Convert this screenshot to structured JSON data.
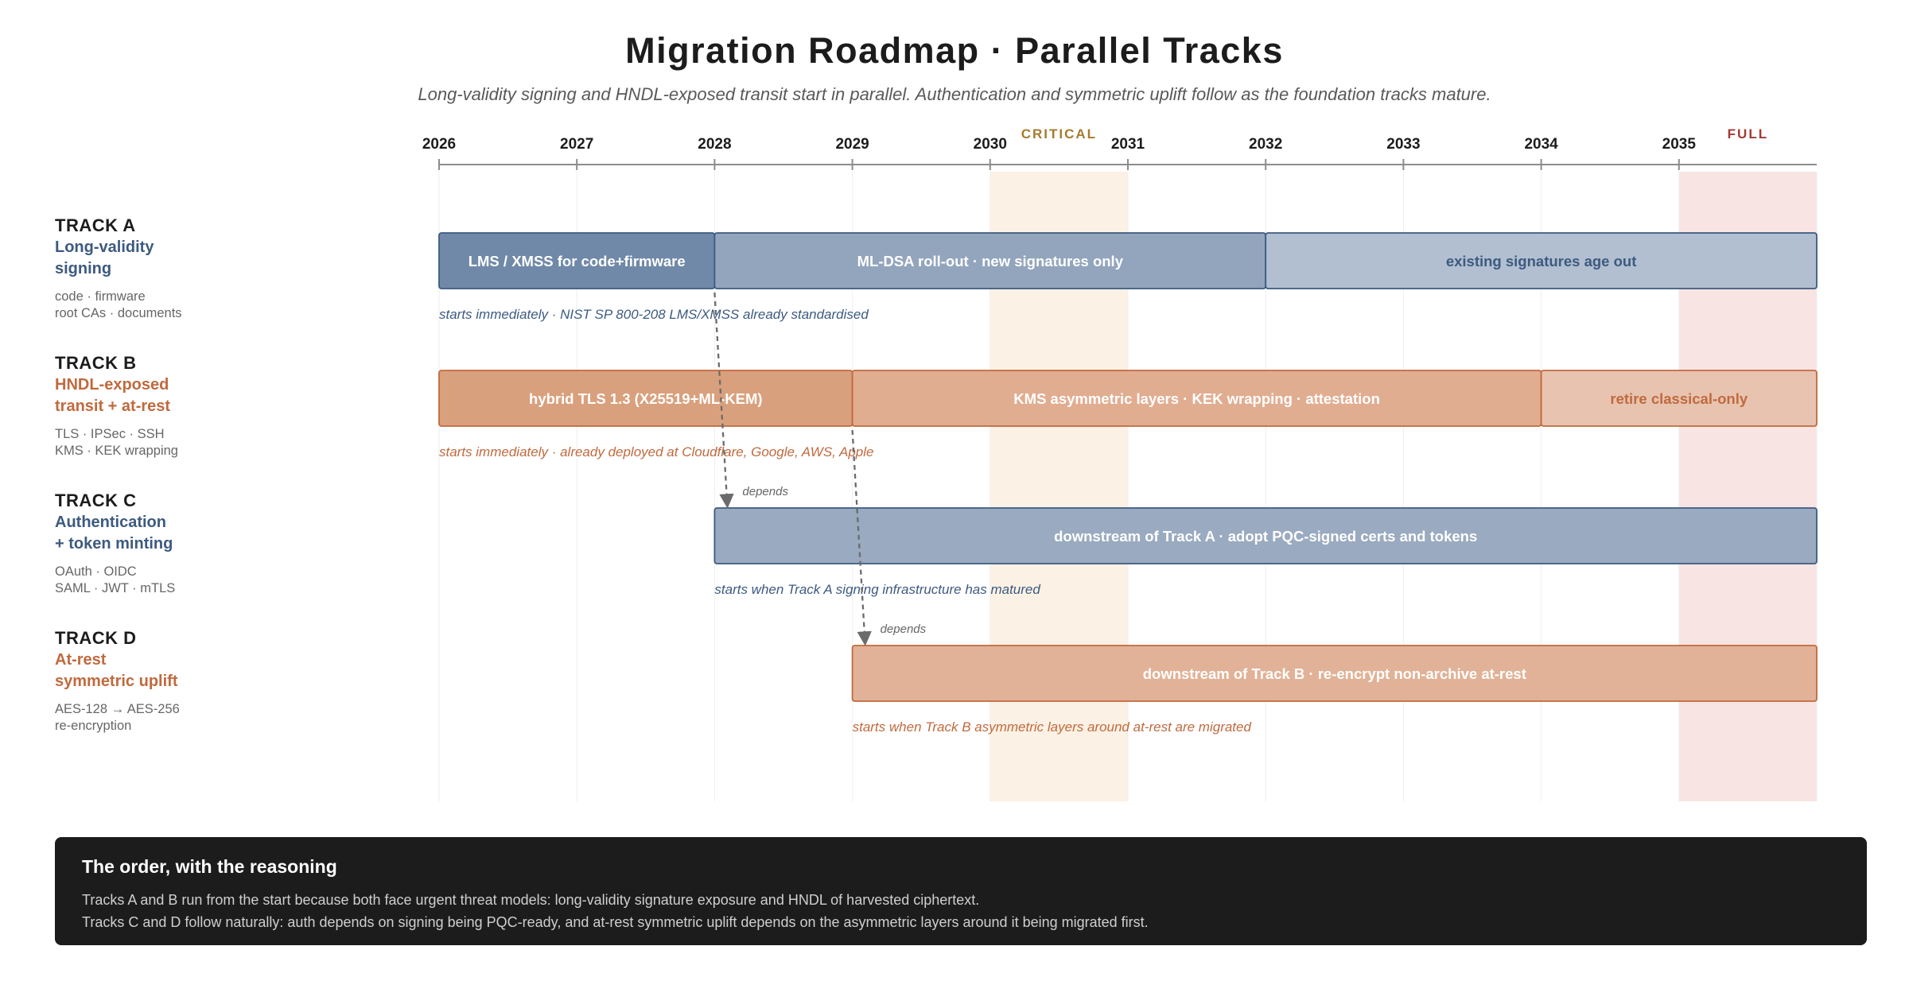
{
  "header": {
    "title": "Migration Roadmap · Parallel Tracks",
    "subtitle": "Long-validity signing and HNDL-exposed transit start in parallel. Authentication and symmetric uplift follow as the foundation tracks mature."
  },
  "timeline": {
    "start_year": 2026,
    "end_year": 2036,
    "years": [
      "2026",
      "2027",
      "2028",
      "2029",
      "2030",
      "2031",
      "2032",
      "2033",
      "2034",
      "2035"
    ],
    "bands": [
      {
        "label": "CRITICAL",
        "from": 2030,
        "to": 2031,
        "fill": "#fbf1e4",
        "text_color": "#a77a2e"
      },
      {
        "label": "FULL",
        "from": 2035,
        "to": 2036,
        "fill": "#f8e4e2",
        "text_color": "#a53b32"
      }
    ]
  },
  "colors": {
    "blue_text": "#3d5a80",
    "orange_text": "#c06a3e",
    "axis": "#8c8c8c",
    "dependency": "#6b6b6b"
  },
  "tracks": [
    {
      "id": "TRACK A",
      "name_lines": [
        "Long-validity",
        "signing"
      ],
      "tags": [
        "code · firmware",
        "root CAs · documents"
      ],
      "color": "#3d5a80",
      "bars": [
        {
          "label": "LMS / XMSS for code+firmware",
          "from": 2026,
          "to": 2028,
          "fill": "#7089a8",
          "stroke": "#3d5a80",
          "text_color": "#ffffff"
        },
        {
          "label": "ML-DSA roll-out · new signatures only",
          "from": 2028,
          "to": 2032,
          "fill": "#93a5bd",
          "stroke": "#3d5a80",
          "text_color": "#ffffff"
        },
        {
          "label": "existing signatures age out",
          "from": 2032,
          "to": 2036,
          "fill": "#b1bfd0",
          "stroke": "#3d5a80",
          "text_color": "#3d5a80"
        }
      ],
      "note": {
        "text": "starts immediately · NIST SP 800-208 LMS/XMSS already standardised",
        "at": 2026
      }
    },
    {
      "id": "TRACK B",
      "name_lines": [
        "HNDL-exposed",
        "transit + at-rest"
      ],
      "tags": [
        "TLS · IPSec · SSH",
        "KMS · KEK wrapping"
      ],
      "color": "#c06a3e",
      "bars": [
        {
          "label": "hybrid TLS 1.3 (X25519+ML-KEM)",
          "from": 2026,
          "to": 2029,
          "fill": "#d9a07d",
          "stroke": "#c06a3e",
          "text_color": "#ffffff"
        },
        {
          "label": "KMS asymmetric layers · KEK wrapping · attestation",
          "from": 2029,
          "to": 2034,
          "fill": "#e1ad91",
          "stroke": "#c06a3e",
          "text_color": "#ffffff"
        },
        {
          "label": "retire classical-only",
          "from": 2034,
          "to": 2036,
          "fill": "#e8c3b0",
          "stroke": "#c06a3e",
          "text_color": "#c06a3e"
        }
      ],
      "note": {
        "text": "starts immediately · already deployed at Cloudflare, Google, AWS, Apple",
        "at": 2026
      }
    },
    {
      "id": "TRACK C",
      "name_lines": [
        "Authentication",
        "+ token minting"
      ],
      "tags": [
        "OAuth · OIDC",
        "SAML · JWT · mTLS"
      ],
      "color": "#3d5a80",
      "bars": [
        {
          "label": "downstream of Track A · adopt PQC-signed certs and tokens",
          "from": 2028,
          "to": 2036,
          "fill": "#9aaac0",
          "stroke": "#3d5a80",
          "text_color": "#ffffff"
        }
      ],
      "note": {
        "text": "starts when Track A signing infrastructure has matured",
        "at": 2028
      },
      "dependency": {
        "label": "depends",
        "from_year": 2028,
        "from_track": 0
      }
    },
    {
      "id": "TRACK D",
      "name_lines": [
        "At-rest",
        "symmetric uplift"
      ],
      "tags": [
        "AES-128 → AES-256",
        "re-encryption"
      ],
      "color": "#c06a3e",
      "bars": [
        {
          "label": "downstream of Track B · re-encrypt non-archive at-rest",
          "from": 2029,
          "to": 2036,
          "fill": "#e1b297",
          "stroke": "#c06a3e",
          "text_color": "#ffffff"
        }
      ],
      "note": {
        "text": "starts when Track B asymmetric layers around at-rest are migrated",
        "at": 2029
      },
      "dependency": {
        "label": "depends",
        "from_year": 2029,
        "from_track": 1
      }
    }
  ],
  "footer": {
    "title": "The order, with the reasoning",
    "lines": [
      "Tracks A and B run from the start because both face urgent threat models: long-validity signature exposure and HNDL of harvested ciphertext.",
      "Tracks C and D follow naturally: auth depends on signing being PQC-ready, and at-rest symmetric uplift depends on the asymmetric layers around it being migrated first."
    ]
  }
}
